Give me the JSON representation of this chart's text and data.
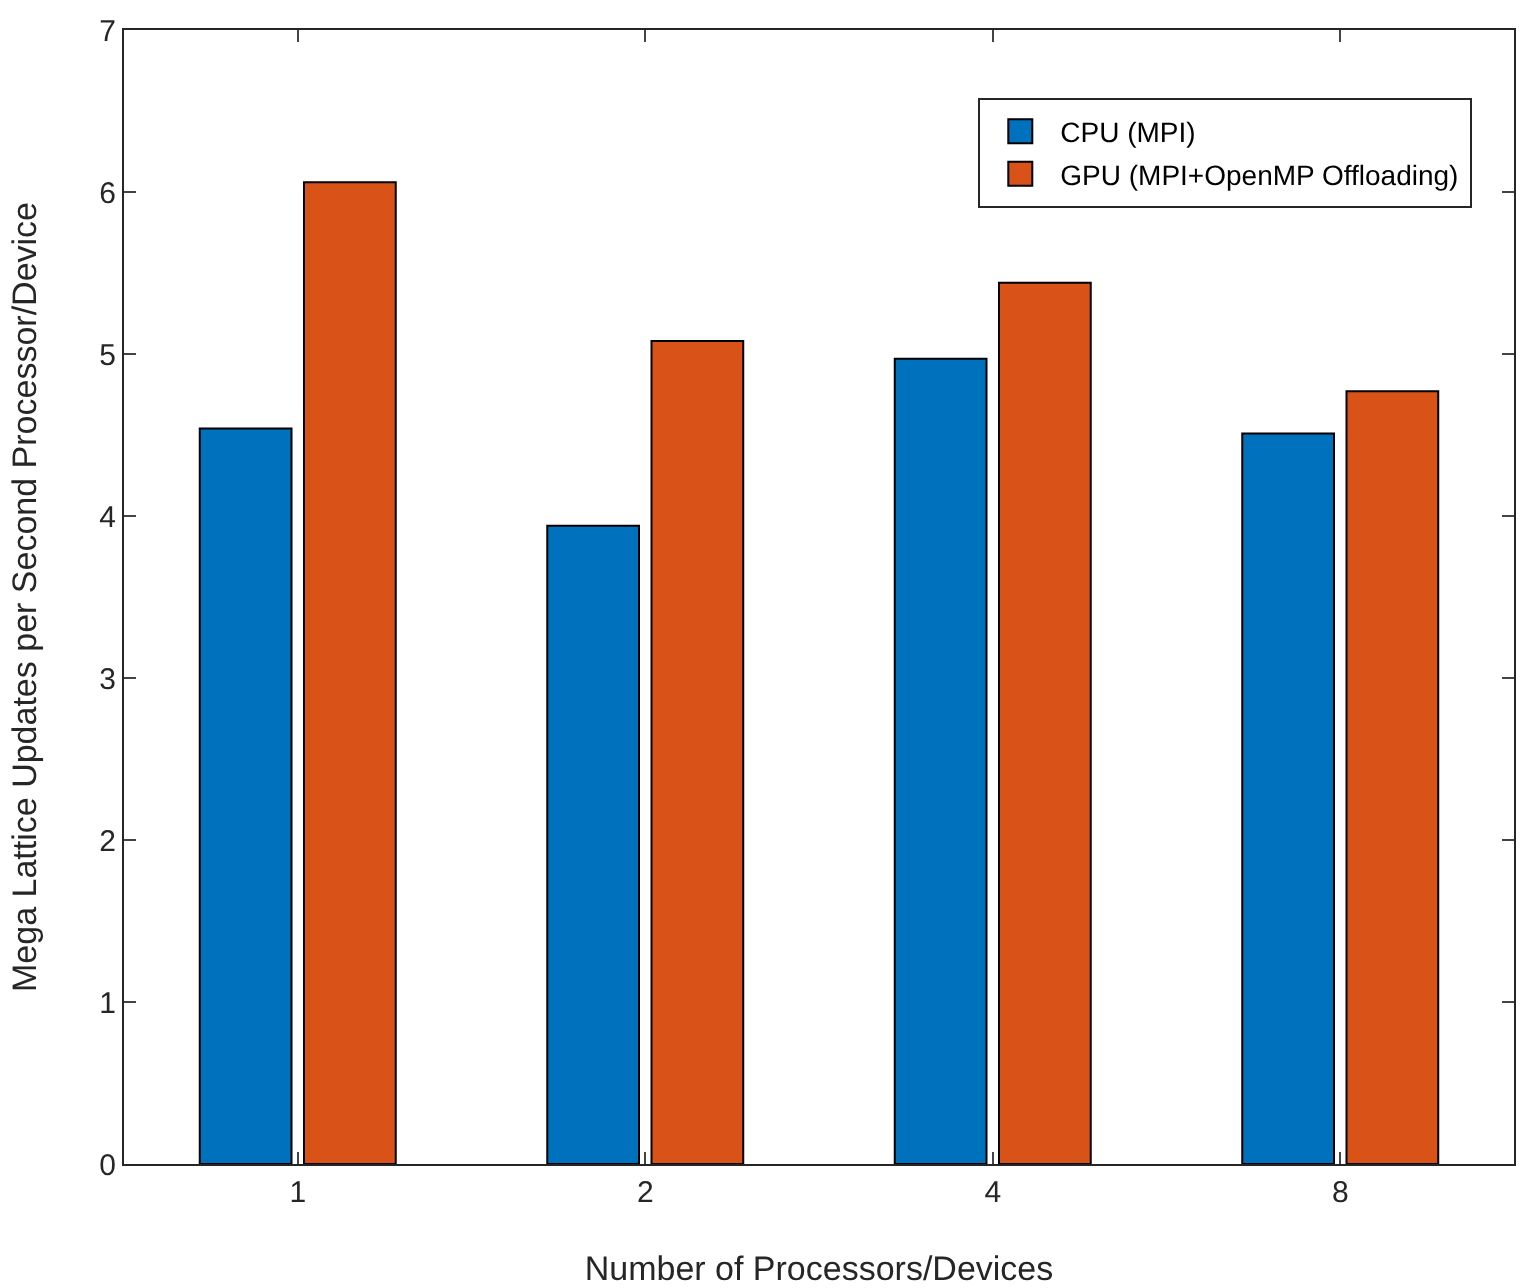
{
  "chart_data": {
    "type": "bar",
    "xlabel": "Number of Processors/Devices",
    "ylabel": "Mega Lattice Updates per Second Processor/Device",
    "categories": [
      "1",
      "2",
      "4",
      "8"
    ],
    "series": [
      {
        "name": "CPU (MPI)",
        "color": "#0072bd",
        "values": [
          4.54,
          3.94,
          4.97,
          4.51
        ]
      },
      {
        "name": "GPU (MPI+OpenMP Offloading)",
        "color": "#d95319",
        "values": [
          6.06,
          5.08,
          5.44,
          4.77
        ]
      }
    ],
    "ylim": [
      0,
      7
    ],
    "yticks": [
      0,
      1,
      2,
      3,
      4,
      5,
      6,
      7
    ],
    "grid": false,
    "legend": "top right"
  }
}
